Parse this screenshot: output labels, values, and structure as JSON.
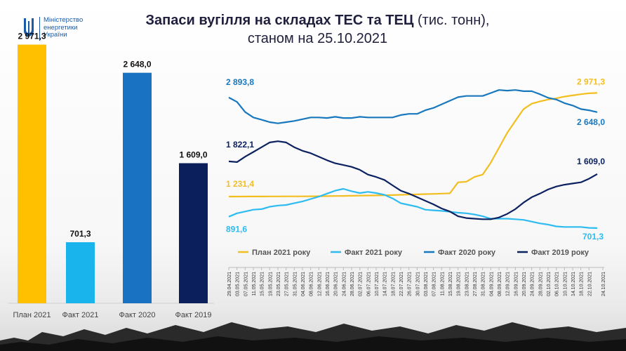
{
  "logo": {
    "lines": [
      "Міністерство",
      "енергетики",
      "України"
    ]
  },
  "title": {
    "main": "Запаси вугілля на складах ТЕС та ТЕЦ",
    "unit": "(тис. тонн),",
    "subtitle": "станом на 25.10.2021"
  },
  "chart_data": [
    {
      "type": "bar",
      "categories": [
        "План 2021",
        "Факт 2021",
        "Факт 2020",
        "Факт 2019"
      ],
      "values": [
        2971.3,
        701.3,
        2648.0,
        1609.0
      ],
      "labels": [
        "2 971,3",
        "701,3",
        "2 648,0",
        "1 609,0"
      ],
      "colors": [
        "#ffc000",
        "#19b4ec",
        "#1a73c2",
        "#0b1f5c"
      ],
      "ylim": [
        0,
        3000
      ]
    },
    {
      "type": "line",
      "x": [
        "29.04.2021",
        "03.05.2021",
        "07.05.2021",
        "11.05.2021",
        "15.05.2021",
        "19.05.2021",
        "23.05.2021",
        "27.05.2021",
        "31.05.2021",
        "04.06.2021",
        "08.06.2021",
        "12.06.2021",
        "16.06.2021",
        "20.06.2021",
        "24.06.2021",
        "28.06.2021",
        "02.07.2021",
        "06.07.2021",
        "10.07.2021",
        "14.07.2021",
        "18.07.2021",
        "22.07.2021",
        "26.07.2021",
        "30.07.2021",
        "03.08.2021",
        "07.08.2021",
        "11.08.2021",
        "15.08.2021",
        "19.08.2021",
        "23.08.2021",
        "27.08.2021",
        "31.08.2021",
        "04.09.2021",
        "08.09.2021",
        "12.09.2021",
        "16.09.2021",
        "20.09.2021",
        "24.09.2021",
        "28.09.2021",
        "02.10.2021",
        "06.10.2021",
        "10.10.2021",
        "14.10.2021",
        "18.10.2021",
        "22.10.2021",
        "24.10.2021"
      ],
      "ylim": [
        500,
        3400
      ],
      "series": [
        {
          "name": "План 2021 року",
          "color": "#f2be20",
          "start_label": "1 231,4",
          "end_label": "2 971,3",
          "values": [
            1231,
            1231,
            1232,
            1232,
            1232,
            1233,
            1233,
            1234,
            1234,
            1235,
            1236,
            1237,
            1238,
            1240,
            1242,
            1244,
            1246,
            1248,
            1250,
            1253,
            1256,
            1260,
            1264,
            1268,
            1272,
            1276,
            1280,
            1285,
            1470,
            1480,
            1560,
            1600,
            1800,
            2050,
            2300,
            2500,
            2700,
            2790,
            2830,
            2860,
            2880,
            2910,
            2930,
            2950,
            2965,
            2971
          ]
        },
        {
          "name": "Факт 2021 року",
          "color": "#2ebbef",
          "start_label": "891,6",
          "end_label": "701,3",
          "values": [
            892,
            950,
            980,
            1010,
            1020,
            1060,
            1080,
            1090,
            1120,
            1150,
            1190,
            1230,
            1280,
            1330,
            1360,
            1320,
            1290,
            1310,
            1290,
            1260,
            1200,
            1120,
            1090,
            1060,
            1010,
            1000,
            990,
            975,
            960,
            950,
            930,
            900,
            860,
            860,
            860,
            850,
            840,
            810,
            780,
            760,
            730,
            720,
            720,
            720,
            705,
            701
          ]
        },
        {
          "name": "Факт 2020 року",
          "color": "#1878be",
          "start_label": "2 893,8",
          "end_label": "2 648,0",
          "values": [
            2894,
            2820,
            2650,
            2560,
            2520,
            2480,
            2460,
            2480,
            2500,
            2530,
            2560,
            2560,
            2550,
            2570,
            2550,
            2550,
            2570,
            2560,
            2560,
            2560,
            2560,
            2600,
            2620,
            2620,
            2680,
            2720,
            2780,
            2840,
            2900,
            2920,
            2920,
            2920,
            2970,
            3020,
            3010,
            3020,
            3000,
            3000,
            2950,
            2890,
            2860,
            2800,
            2760,
            2700,
            2680,
            2648
          ]
        },
        {
          "name": "Факт 2019 року",
          "color": "#0c2160",
          "start_label": "1 822,1",
          "end_label": "1 609,0",
          "values": [
            1822,
            1810,
            1900,
            1980,
            2060,
            2140,
            2160,
            2140,
            2060,
            2000,
            1960,
            1900,
            1840,
            1790,
            1760,
            1730,
            1680,
            1600,
            1560,
            1510,
            1420,
            1330,
            1280,
            1220,
            1160,
            1100,
            1030,
            980,
            900,
            870,
            860,
            850,
            850,
            880,
            940,
            1020,
            1130,
            1220,
            1280,
            1350,
            1400,
            1430,
            1450,
            1470,
            1530,
            1609
          ]
        }
      ]
    }
  ]
}
